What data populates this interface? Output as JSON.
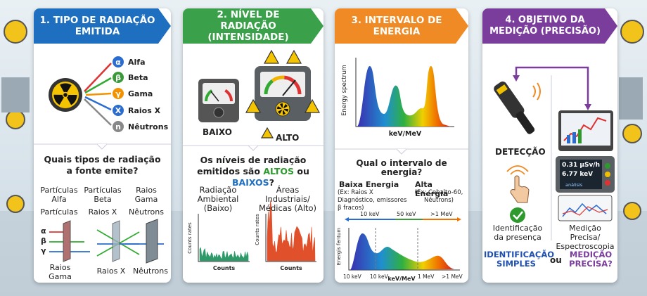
{
  "panels": [
    {
      "title": "1. TIPO DE RADIAÇÃO EMITIDA",
      "legend": [
        {
          "symbol": "α",
          "label": "Alfa"
        },
        {
          "symbol": "β",
          "label": "Beta"
        },
        {
          "symbol": "γ",
          "label": "Gama"
        },
        {
          "symbol": "X",
          "label": "Raios X"
        },
        {
          "symbol": "n",
          "label": "Nêutrons"
        }
      ],
      "question": "Quais tipos de radiação a fonte emite?",
      "types": [
        "Partículas Alfa",
        "Partículas Beta",
        "Raios Gama",
        "Partículas",
        "Raios X",
        "Nêutrons"
      ],
      "symbols": [
        "α",
        "β",
        "γ"
      ],
      "labels": [
        "Raios Gama",
        "Raios X",
        "Nêutrons"
      ]
    },
    {
      "title": "2. NÍVEL DE RADIAÇÃO (INTENSIDADE)",
      "levels": [
        "BAIXO",
        "ALTO"
      ],
      "question": [
        "Os níveis de radiação emitidos são ",
        "ALTOS",
        " ou ",
        "BAIXOS",
        "?"
      ],
      "cases": [
        "Radiação Ambiental (Baixo)",
        "Áreas Industriais/ Médicas (Alto)"
      ],
      "y_label": "Counts rates",
      "x_label": "Counts"
    },
    {
      "title": "3. INTERVALO DE ENERGIA",
      "spectrum_y": "Energy spectrum",
      "spectrum_x": "keV/MeV",
      "question": "Qual o intervalo de energia?",
      "ranges": [
        {
          "name": "Baixa Energia",
          "example": "(Ex: Raios X Diagnóstico, emissores β fracos)"
        },
        {
          "name": "Alta Energia",
          "example": "(Ex: Cobalto-60, Nêutrons)"
        }
      ],
      "bands": [
        "10 keV",
        "50 keV",
        ">1 MeV"
      ],
      "lower_y": "Energis fentum",
      "lower_ticks": [
        "10 keV",
        "10 keV",
        "1 MeV",
        ">1 MeV"
      ],
      "lower_x": "keV/MeV"
    },
    {
      "title": "4. OBJETIVO DA MEDIÇÃO (PRECISÃO)",
      "detect": "DETECÇÃO",
      "screen": [
        "0.31 µSv/h",
        "6.77 keV",
        "análisis"
      ],
      "outcomes": [
        "Identificação da presença",
        "Medição Precisa/ Espectroscopia"
      ],
      "choice": [
        "IDENTIFICAÇÃO SIMPLES",
        "ou",
        "MEDIÇÃO PRECISA?"
      ]
    }
  ]
}
